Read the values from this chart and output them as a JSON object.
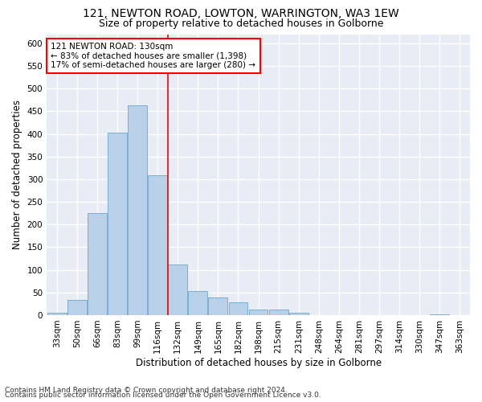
{
  "title1": "121, NEWTON ROAD, LOWTON, WARRINGTON, WA3 1EW",
  "title2": "Size of property relative to detached houses in Golborne",
  "xlabel": "Distribution of detached houses by size in Golborne",
  "ylabel": "Number of detached properties",
  "categories": [
    "33sqm",
    "50sqm",
    "66sqm",
    "83sqm",
    "99sqm",
    "116sqm",
    "132sqm",
    "149sqm",
    "165sqm",
    "182sqm",
    "198sqm",
    "215sqm",
    "231sqm",
    "248sqm",
    "264sqm",
    "281sqm",
    "297sqm",
    "314sqm",
    "330sqm",
    "347sqm",
    "363sqm"
  ],
  "values": [
    5,
    33,
    226,
    402,
    463,
    308,
    111,
    53,
    39,
    29,
    13,
    12,
    5,
    0,
    0,
    0,
    0,
    0,
    0,
    2,
    0
  ],
  "bar_color": "#b8d0e8",
  "bar_edge_color": "#7aaed0",
  "annotation_text": "121 NEWTON ROAD: 130sqm\n← 83% of detached houses are smaller (1,398)\n17% of semi-detached houses are larger (280) →",
  "annotation_box_color": "white",
  "annotation_box_edge_color": "red",
  "vline_x": 5.5,
  "vline_color": "red",
  "ylim": [
    0,
    620
  ],
  "yticks": [
    0,
    50,
    100,
    150,
    200,
    250,
    300,
    350,
    400,
    450,
    500,
    550,
    600
  ],
  "footnote1": "Contains HM Land Registry data © Crown copyright and database right 2024.",
  "footnote2": "Contains public sector information licensed under the Open Government Licence v3.0.",
  "background_color": "#e8edf5",
  "grid_color": "white",
  "title_fontsize": 10,
  "subtitle_fontsize": 9,
  "axis_label_fontsize": 8.5,
  "tick_fontsize": 7.5,
  "annotation_fontsize": 7.5,
  "footnote_fontsize": 6.5
}
